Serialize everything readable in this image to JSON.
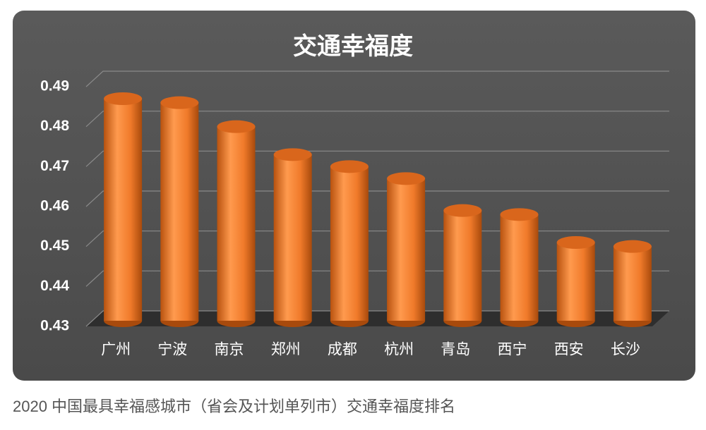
{
  "chart_data": {
    "type": "bar",
    "title": "交通幸福度",
    "categories": [
      "广州",
      "宁波",
      "南京",
      "郑州",
      "成都",
      "杭州",
      "青岛",
      "西宁",
      "西安",
      "长沙"
    ],
    "values": [
      0.487,
      0.486,
      0.48,
      0.473,
      0.47,
      0.467,
      0.459,
      0.458,
      0.451,
      0.45
    ],
    "color": "#f07a2a",
    "ylim": [
      0.43,
      0.49
    ],
    "yticks": [
      0.43,
      0.44,
      0.45,
      0.46,
      0.47,
      0.48,
      0.49
    ],
    "grid": true
  },
  "caption": "2020 中国最具幸福感城市（省会及计划单列市）交通幸福度排名"
}
